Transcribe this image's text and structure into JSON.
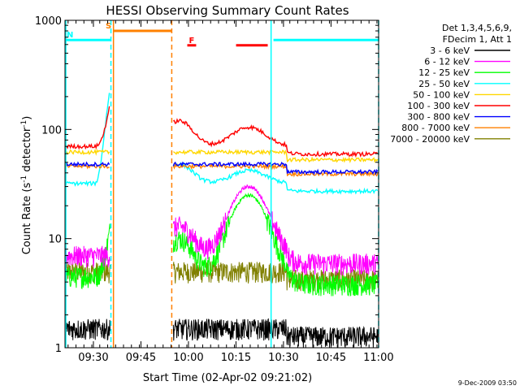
{
  "chart_data": {
    "type": "line",
    "title": "HESSI Observing Summary Count Rates",
    "xlabel": "Start Time (02-Apr-02 09:21:02)",
    "ylabel_main": "Count Rate (s",
    "ylabel_sup1": "-1",
    "ylabel_mid": " detector",
    "ylabel_sup2": "-1",
    "ylabel_end": ")",
    "y_scale": "log",
    "ylim": [
      1,
      1000
    ],
    "xlim_minutes": [
      0,
      99
    ],
    "x_ticks": [
      {
        "label": "09:30",
        "minutes": 8.97
      },
      {
        "label": "09:45",
        "minutes": 23.97
      },
      {
        "label": "10:00",
        "minutes": 38.97
      },
      {
        "label": "10:15",
        "minutes": 53.97
      },
      {
        "label": "10:30",
        "minutes": 68.97
      },
      {
        "label": "10:45",
        "minutes": 83.97
      },
      {
        "label": "11:00",
        "minutes": 98.97
      }
    ],
    "y_ticks": [
      {
        "label": "1",
        "value": 1
      },
      {
        "label": "10",
        "value": 10
      },
      {
        "label": "100",
        "value": 100
      },
      {
        "label": "1000",
        "value": 1000
      }
    ],
    "legend": {
      "header1": "Det 1,3,4,5,6,9,",
      "header2": "FDecim 1, Att 1",
      "position": "right"
    },
    "series": [
      {
        "name": "3 - 6 keV",
        "color": "#000000"
      },
      {
        "name": "6 - 12 keV",
        "color": "#ff00ff"
      },
      {
        "name": "12 - 25 keV",
        "color": "#00ff00"
      },
      {
        "name": "25 - 50 keV",
        "color": "#00ffff"
      },
      {
        "name": "50 - 100 keV",
        "color": "#ffd700"
      },
      {
        "name": "100 - 300 keV",
        "color": "#ff0000"
      },
      {
        "name": "300 - 800 keV",
        "color": "#0000ff"
      },
      {
        "name": "800 - 7000 keV",
        "color": "#ff8000"
      },
      {
        "name": "7000 - 20000 keV",
        "color": "#808000"
      }
    ],
    "flag_bars": [
      {
        "label": "S",
        "label_color": "#ff8000",
        "color": "#ff8000",
        "start": 15.4,
        "end": 33.6,
        "level": 800
      },
      {
        "label": "N",
        "label_color": "#00ffff",
        "color": "#00ffff",
        "start": 0,
        "end": 14.4,
        "level": 660
      },
      {
        "label": "",
        "label_color": "#00ffff",
        "color": "#00ffff",
        "start": 65.8,
        "end": 99,
        "level": 660
      },
      {
        "label": "F",
        "label_color": "#ff0000",
        "color": "#ff0000",
        "start": 38.6,
        "end": 41.4,
        "level": 590
      },
      {
        "label": "",
        "label_color": "#ff0000",
        "color": "#ff0000",
        "start": 54,
        "end": 64,
        "level": 590
      }
    ],
    "night_intervals": [
      {
        "start": 0,
        "end": 14.5,
        "color": "#00ffff",
        "style": "solid-dashed"
      },
      {
        "start": 64.8,
        "end": 99,
        "color": "#00ffff",
        "style": "solid-dashed"
      }
    ],
    "saa_interval": {
      "start": 15.3,
      "end": 33.7,
      "color": "#ff8000"
    },
    "approx_levels": {
      "pre_flare_minutes": [
        0,
        15
      ],
      "post_gap_minutes": [
        34,
        99
      ],
      "background_values": {
        "100 - 300 keV": 70,
        "50 - 100 keV": 62,
        "300 - 800 keV": 48,
        "800 - 7000 keV": 46,
        "25 - 50 keV": 32,
        "7000 - 20000 keV": 5,
        "12 - 25 keV": 4.5,
        "6 - 12 keV": 7,
        "3 - 6 keV": 1.5
      },
      "flare_peak_minutes": [
        11.5,
        14,
        45,
        58.5
      ],
      "flare_peaks": {
        "100 - 300 keV": [
          170,
          0,
          120,
          105
        ],
        "25 - 50 keV": [
          240,
          0,
          48,
          42
        ],
        "6 - 12 keV": [
          0,
          0,
          13,
          30
        ],
        "12 - 25 keV": [
          12,
          0,
          10,
          25
        ]
      }
    }
  },
  "footer": {
    "timestamp": "9-Dec-2009 03:50"
  }
}
